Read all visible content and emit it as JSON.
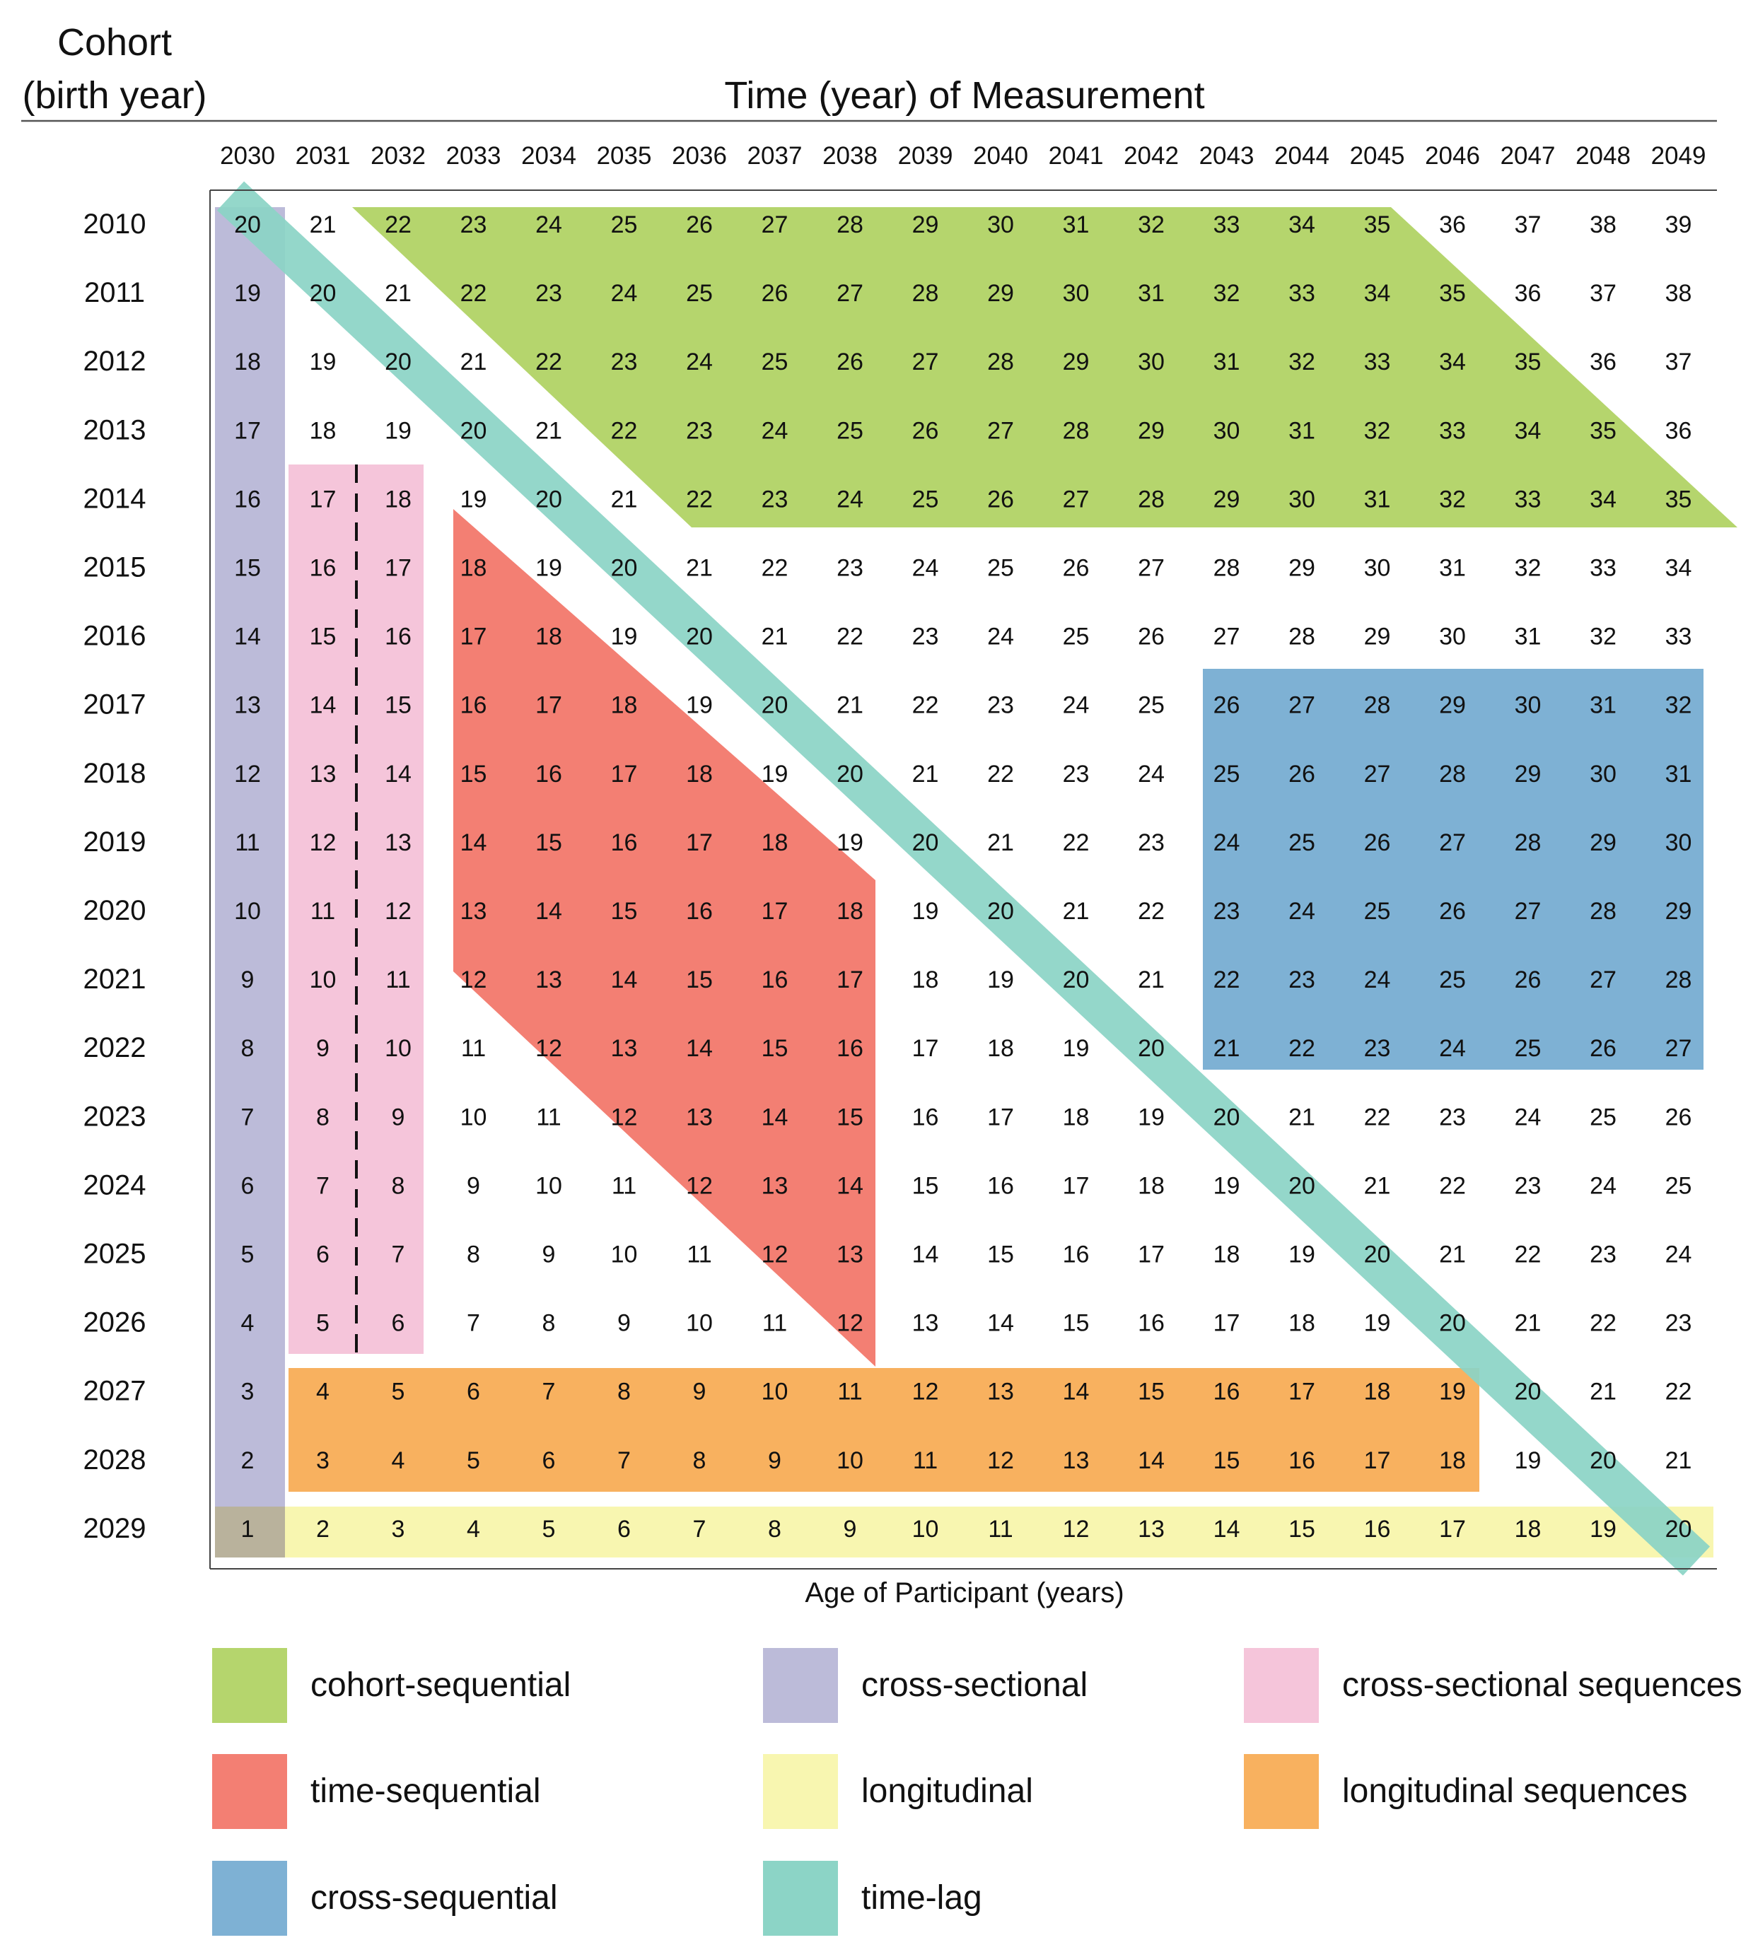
{
  "titles": {
    "cohort_line1": "Cohort",
    "cohort_line2": "(birth year)",
    "time": "Time (year) of Measurement",
    "age_caption": "Age of Participant (years)"
  },
  "measurement_years": [
    "2030",
    "2031",
    "2032",
    "2033",
    "2034",
    "2035",
    "2036",
    "2037",
    "2038",
    "2039",
    "2040",
    "2041",
    "2042",
    "2043",
    "2044",
    "2045",
    "2046",
    "2047",
    "2048",
    "2049"
  ],
  "cohort_years": [
    "2010",
    "2011",
    "2012",
    "2013",
    "2014",
    "2015",
    "2016",
    "2017",
    "2018",
    "2019",
    "2020",
    "2021",
    "2022",
    "2023",
    "2024",
    "2025",
    "2026",
    "2027",
    "2028",
    "2029"
  ],
  "designs": [
    {
      "key": "cohort_sequential",
      "label": "cohort-sequential",
      "color": "#b5d56d"
    },
    {
      "key": "cross_sectional",
      "label": "cross-sectional",
      "color": "#bcbbd9"
    },
    {
      "key": "cross_sectional_sequences",
      "label": "cross-sectional sequences",
      "color": "#f5c5da"
    },
    {
      "key": "time_sequential",
      "label": "time-sequential",
      "color": "#f37f73"
    },
    {
      "key": "longitudinal",
      "label": "longitudinal",
      "color": "#f8f6b0"
    },
    {
      "key": "longitudinal_sequences",
      "label": "longitudinal sequences",
      "color": "#f8b15f"
    },
    {
      "key": "cross_sequential",
      "label": "cross-sequential",
      "color": "#7eb1d4"
    },
    {
      "key": "time_lag",
      "label": "time-lag",
      "color": "#8cd4c6"
    }
  ],
  "colors": {
    "overlap_purple_yellow": "#b9b29c",
    "text": "#111111",
    "axis": "#666666"
  }
}
